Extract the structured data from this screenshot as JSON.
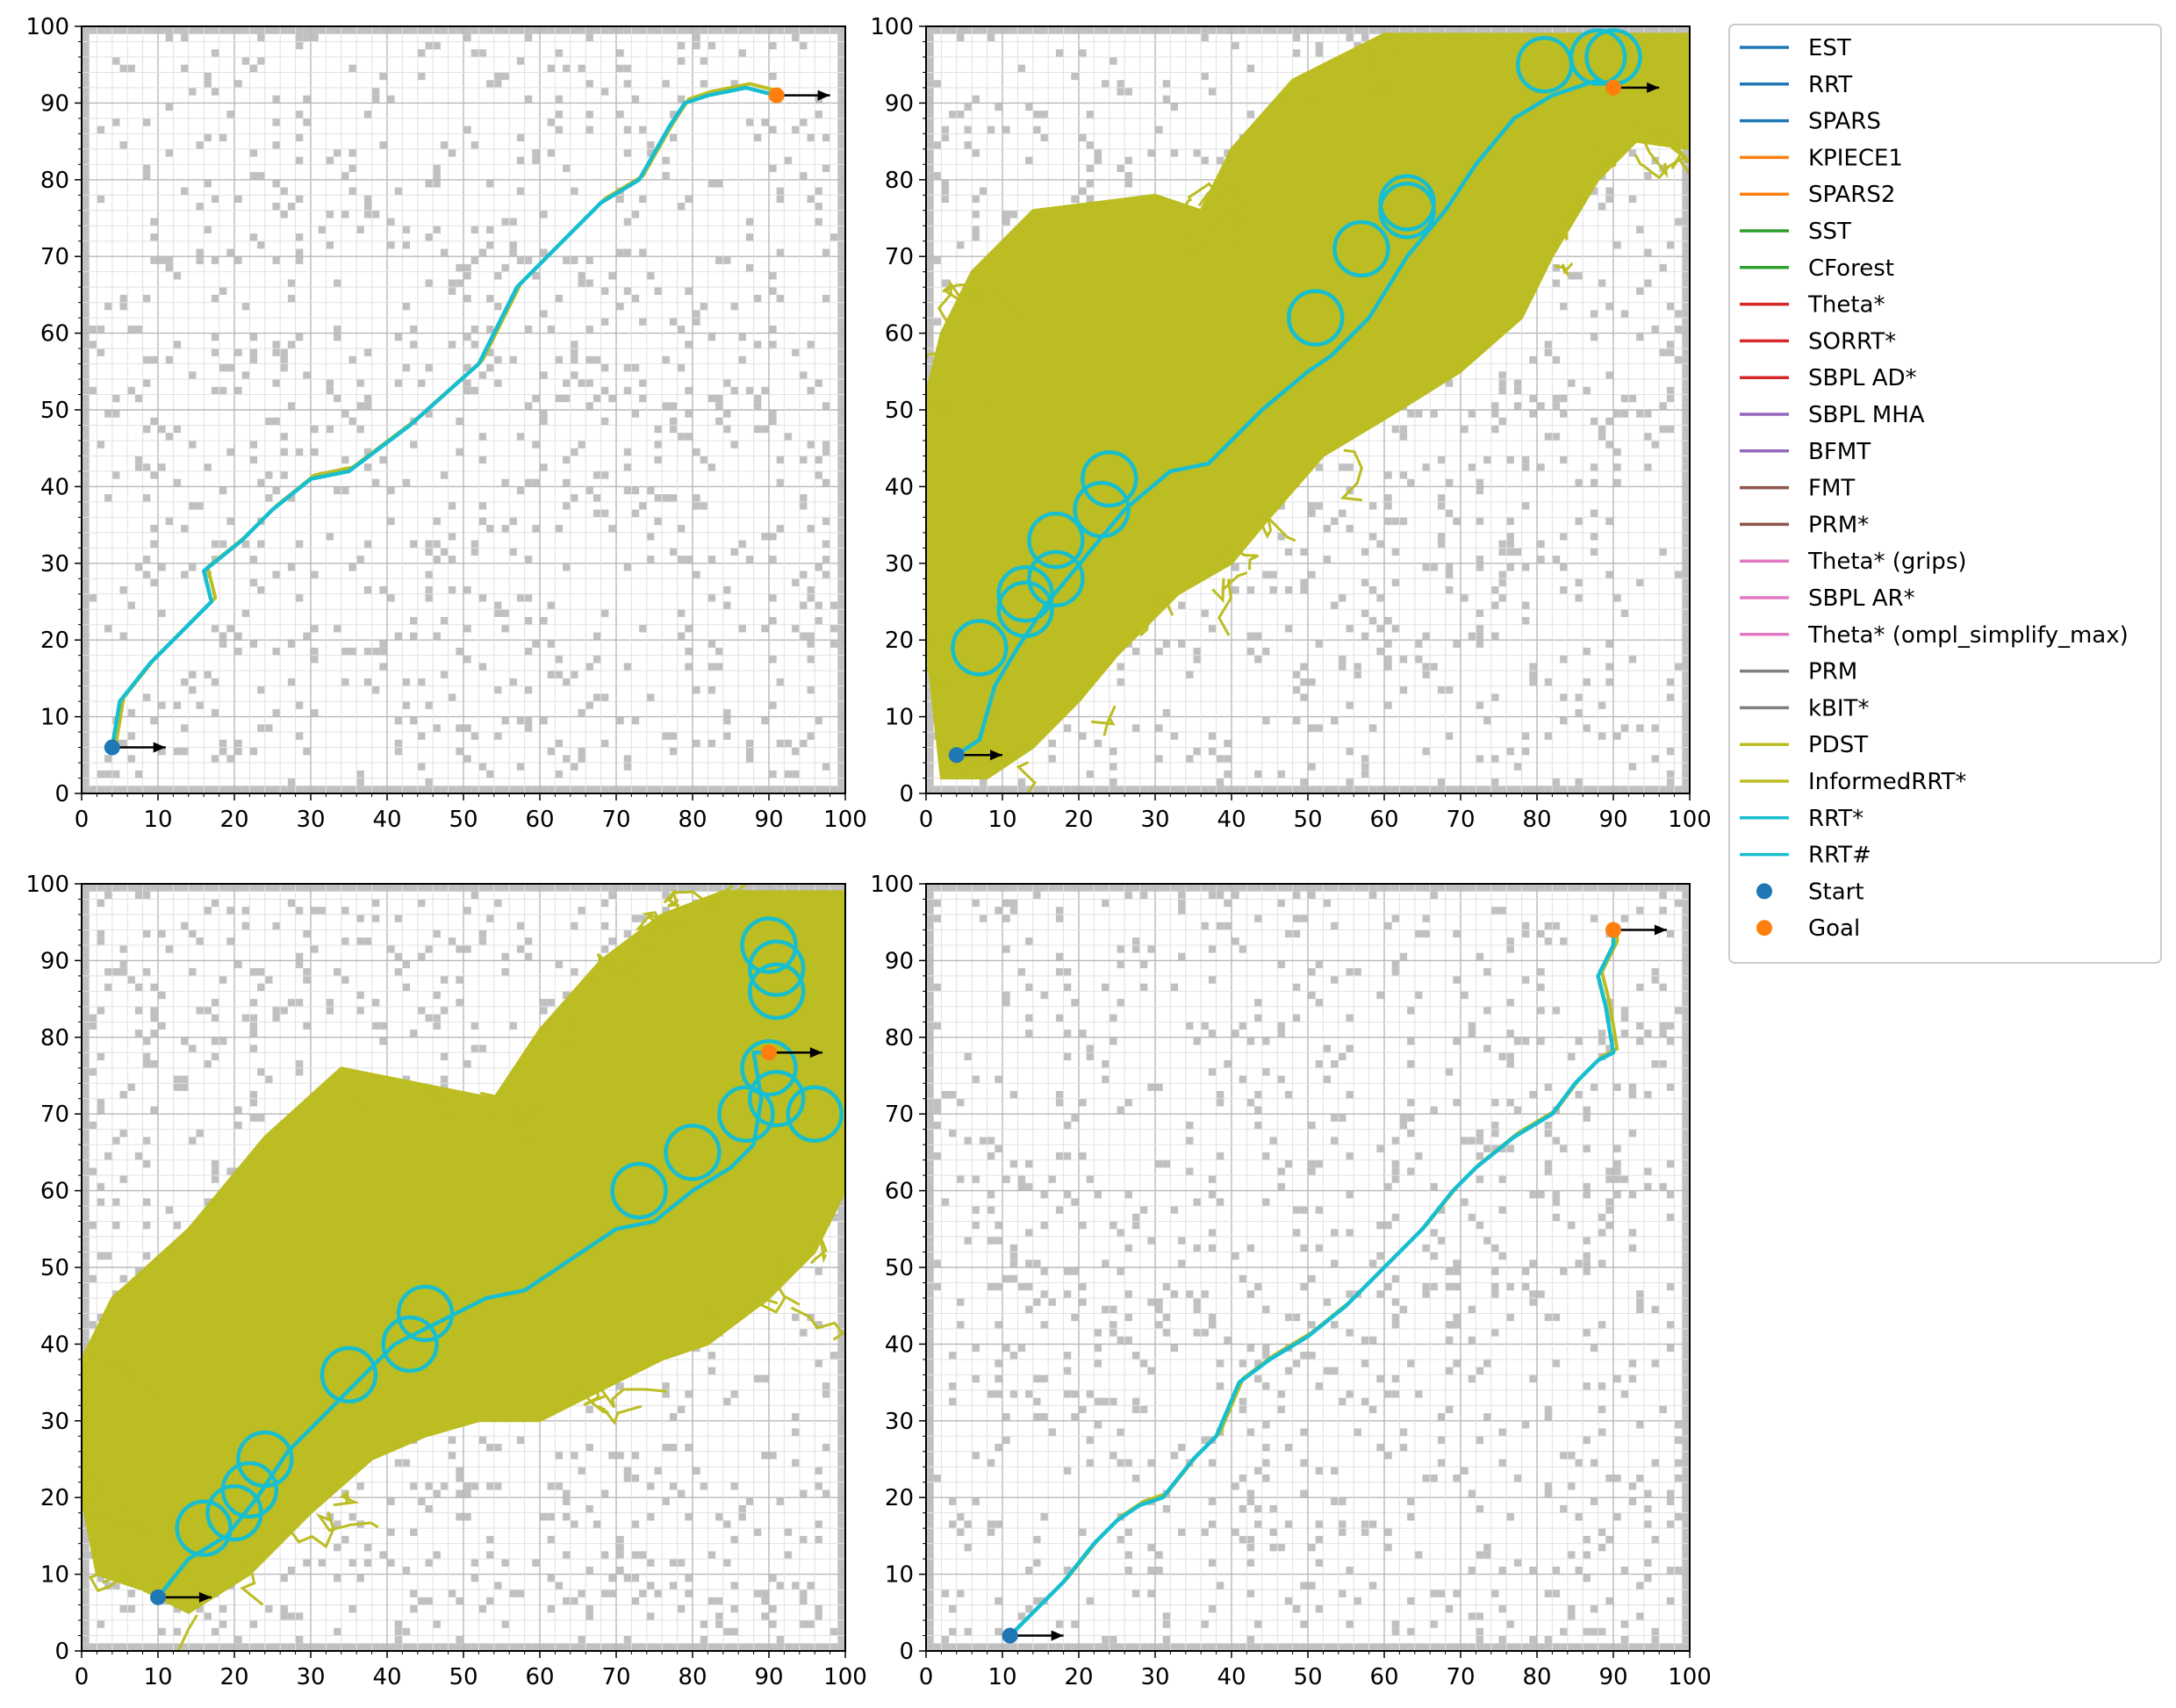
{
  "chart_data": {
    "type": "line",
    "axes_common": {
      "xlim": [
        0,
        100
      ],
      "ylim": [
        0,
        100
      ],
      "xticks": [
        "0",
        "10",
        "20",
        "30",
        "40",
        "50",
        "60",
        "70",
        "80",
        "90",
        "100"
      ],
      "yticks": [
        "0",
        "10",
        "20",
        "30",
        "40",
        "50",
        "60",
        "70",
        "80",
        "90",
        "100"
      ],
      "grid": "on (major and minor)",
      "background": "occupancy grid with grey blocked cells"
    },
    "legend": {
      "placement": "outside-right",
      "entries": [
        {
          "name": "EST",
          "color": "#1f77b4",
          "marker": "line"
        },
        {
          "name": "RRT",
          "color": "#1f77b4",
          "marker": "line"
        },
        {
          "name": "SPARS",
          "color": "#1f77b4",
          "marker": "line"
        },
        {
          "name": "KPIECE1",
          "color": "#ff7f0e",
          "marker": "line"
        },
        {
          "name": "SPARS2",
          "color": "#ff7f0e",
          "marker": "line"
        },
        {
          "name": "SST",
          "color": "#2ca02c",
          "marker": "line"
        },
        {
          "name": "CForest",
          "color": "#2ca02c",
          "marker": "line"
        },
        {
          "name": "Theta*",
          "color": "#d62728",
          "marker": "line"
        },
        {
          "name": "SORRT*",
          "color": "#d62728",
          "marker": "line"
        },
        {
          "name": "SBPL AD*",
          "color": "#d62728",
          "marker": "line"
        },
        {
          "name": "SBPL MHA",
          "color": "#9467bd",
          "marker": "line"
        },
        {
          "name": "BFMT",
          "color": "#9467bd",
          "marker": "line"
        },
        {
          "name": "FMT",
          "color": "#8c564b",
          "marker": "line"
        },
        {
          "name": "PRM*",
          "color": "#8c564b",
          "marker": "line"
        },
        {
          "name": "Theta* (grips)",
          "color": "#e377c2",
          "marker": "line"
        },
        {
          "name": "SBPL AR*",
          "color": "#e377c2",
          "marker": "line"
        },
        {
          "name": "Theta* (ompl_simplify_max)",
          "color": "#e377c2",
          "marker": "line"
        },
        {
          "name": "PRM",
          "color": "#7f7f7f",
          "marker": "line"
        },
        {
          "name": "kBIT*",
          "color": "#7f7f7f",
          "marker": "line"
        },
        {
          "name": "PDST",
          "color": "#bcbd22",
          "marker": "line"
        },
        {
          "name": "InformedRRT*",
          "color": "#bcbd22",
          "marker": "line"
        },
        {
          "name": "RRT*",
          "color": "#17becf",
          "marker": "line"
        },
        {
          "name": "RRT#",
          "color": "#17becf",
          "marker": "line"
        },
        {
          "name": "Start",
          "color": "#1f77b4",
          "marker": "dot"
        },
        {
          "name": "Goal",
          "color": "#ff7f0e",
          "marker": "dot"
        }
      ]
    },
    "panels": [
      {
        "id": "top-left",
        "start": [
          4,
          6
        ],
        "goal": [
          91,
          91
        ],
        "start_heading": [
          11,
          6
        ],
        "goal_heading": [
          98,
          91
        ],
        "explore_band": [],
        "path": [
          [
            4,
            6
          ],
          [
            5,
            12
          ],
          [
            9,
            17
          ],
          [
            13,
            21
          ],
          [
            17,
            25
          ],
          [
            16,
            29
          ],
          [
            21,
            33
          ],
          [
            25,
            37
          ],
          [
            30,
            41
          ],
          [
            35,
            42
          ],
          [
            43,
            48
          ],
          [
            52,
            56
          ],
          [
            55,
            62
          ],
          [
            57,
            66
          ],
          [
            63,
            72
          ],
          [
            68,
            77
          ],
          [
            73,
            80
          ],
          [
            77,
            87
          ],
          [
            79,
            90
          ],
          [
            82,
            91
          ],
          [
            87,
            92
          ],
          [
            91,
            91
          ]
        ],
        "loops": []
      },
      {
        "id": "top-right",
        "start": [
          4,
          5
        ],
        "goal": [
          90,
          92
        ],
        "start_heading": [
          10,
          5
        ],
        "goal_heading": [
          96,
          92
        ],
        "explore_band": [
          [
            0,
            52
          ],
          [
            2,
            60
          ],
          [
            6,
            68
          ],
          [
            14,
            76
          ],
          [
            30,
            78
          ],
          [
            36,
            76
          ],
          [
            40,
            84
          ],
          [
            48,
            93
          ],
          [
            60,
            99
          ],
          [
            100,
            99
          ],
          [
            100,
            84
          ],
          [
            93,
            85
          ],
          [
            88,
            80
          ],
          [
            82,
            70
          ],
          [
            78,
            62
          ],
          [
            70,
            55
          ],
          [
            62,
            50
          ],
          [
            52,
            44
          ],
          [
            45,
            36
          ],
          [
            40,
            30
          ],
          [
            33,
            26
          ],
          [
            25,
            18
          ],
          [
            20,
            12
          ],
          [
            14,
            6
          ],
          [
            8,
            2
          ],
          [
            2,
            2
          ],
          [
            0,
            20
          ]
        ],
        "path": [
          [
            4,
            5
          ],
          [
            7,
            7
          ],
          [
            9,
            14
          ],
          [
            12,
            19
          ],
          [
            16,
            25
          ],
          [
            21,
            31
          ],
          [
            26,
            37
          ],
          [
            32,
            42
          ],
          [
            37,
            43
          ],
          [
            44,
            50
          ],
          [
            50,
            55
          ],
          [
            53,
            57
          ],
          [
            58,
            62
          ],
          [
            63,
            70
          ],
          [
            68,
            76
          ],
          [
            72,
            82
          ],
          [
            77,
            88
          ],
          [
            82,
            91
          ],
          [
            88,
            93
          ],
          [
            90,
            92
          ]
        ],
        "loops": [
          [
            7,
            19,
            3.5
          ],
          [
            13,
            24,
            3.5
          ],
          [
            13,
            26,
            3.5
          ],
          [
            17,
            28,
            3.5
          ],
          [
            17,
            33,
            3.5
          ],
          [
            23,
            37,
            3.5
          ],
          [
            24,
            41,
            3.5
          ],
          [
            51,
            62,
            3.5
          ],
          [
            57,
            71,
            3.5
          ],
          [
            63,
            77,
            3.5
          ],
          [
            63,
            76,
            3.5
          ],
          [
            81,
            95,
            3.5
          ],
          [
            88,
            96,
            3.5
          ],
          [
            90,
            96,
            3.5
          ]
        ]
      },
      {
        "id": "bottom-left",
        "start": [
          10,
          7
        ],
        "goal": [
          90,
          78
        ],
        "start_heading": [
          17,
          7
        ],
        "goal_heading": [
          97,
          78
        ],
        "explore_band": [
          [
            0,
            38
          ],
          [
            4,
            46
          ],
          [
            14,
            55
          ],
          [
            24,
            67
          ],
          [
            34,
            76
          ],
          [
            44,
            74
          ],
          [
            54,
            72
          ],
          [
            60,
            81
          ],
          [
            68,
            90
          ],
          [
            76,
            96
          ],
          [
            84,
            99
          ],
          [
            100,
            99
          ],
          [
            100,
            60
          ],
          [
            96,
            52
          ],
          [
            90,
            46
          ],
          [
            82,
            40
          ],
          [
            76,
            38
          ],
          [
            68,
            34
          ],
          [
            60,
            30
          ],
          [
            52,
            30
          ],
          [
            45,
            28
          ],
          [
            38,
            25
          ],
          [
            30,
            18
          ],
          [
            22,
            10
          ],
          [
            14,
            5
          ],
          [
            8,
            8
          ],
          [
            2,
            10
          ],
          [
            0,
            20
          ]
        ],
        "path": [
          [
            10,
            7
          ],
          [
            14,
            12
          ],
          [
            19,
            15
          ],
          [
            23,
            20
          ],
          [
            27,
            26
          ],
          [
            31,
            30
          ],
          [
            36,
            35
          ],
          [
            41,
            40
          ],
          [
            47,
            43
          ],
          [
            53,
            46
          ],
          [
            58,
            47
          ],
          [
            64,
            51
          ],
          [
            70,
            55
          ],
          [
            75,
            56
          ],
          [
            80,
            60
          ],
          [
            85,
            63
          ],
          [
            88,
            66
          ],
          [
            89,
            72
          ],
          [
            88,
            78
          ],
          [
            90,
            78
          ]
        ],
        "loops": [
          [
            16,
            16,
            3.5
          ],
          [
            20,
            18,
            3.5
          ],
          [
            22,
            21,
            3.5
          ],
          [
            24,
            25,
            3.5
          ],
          [
            35,
            36,
            3.5
          ],
          [
            43,
            40,
            3.5
          ],
          [
            45,
            44,
            3.5
          ],
          [
            73,
            60,
            3.5
          ],
          [
            80,
            65,
            3.5
          ],
          [
            87,
            70,
            3.5
          ],
          [
            91,
            72,
            3.5
          ],
          [
            96,
            70,
            3.5
          ],
          [
            90,
            76,
            3.5
          ],
          [
            91,
            86,
            3.5
          ],
          [
            91,
            89,
            3.5
          ],
          [
            90,
            92,
            3.5
          ]
        ]
      },
      {
        "id": "bottom-right",
        "start": [
          11,
          2
        ],
        "goal": [
          90,
          94
        ],
        "start_heading": [
          18,
          2
        ],
        "goal_heading": [
          97,
          94
        ],
        "explore_band": [],
        "path": [
          [
            11,
            2
          ],
          [
            14,
            5
          ],
          [
            18,
            9
          ],
          [
            22,
            14
          ],
          [
            25,
            17
          ],
          [
            28,
            19
          ],
          [
            31,
            20
          ],
          [
            35,
            25
          ],
          [
            38,
            28
          ],
          [
            41,
            35
          ],
          [
            45,
            38
          ],
          [
            50,
            41
          ],
          [
            55,
            45
          ],
          [
            60,
            50
          ],
          [
            65,
            55
          ],
          [
            69,
            60
          ],
          [
            72,
            63
          ],
          [
            77,
            67
          ],
          [
            82,
            70
          ],
          [
            85,
            74
          ],
          [
            88,
            77
          ],
          [
            90,
            78
          ],
          [
            89,
            84
          ],
          [
            88,
            88
          ],
          [
            90,
            92
          ],
          [
            90,
            94
          ]
        ],
        "loops": []
      }
    ]
  }
}
